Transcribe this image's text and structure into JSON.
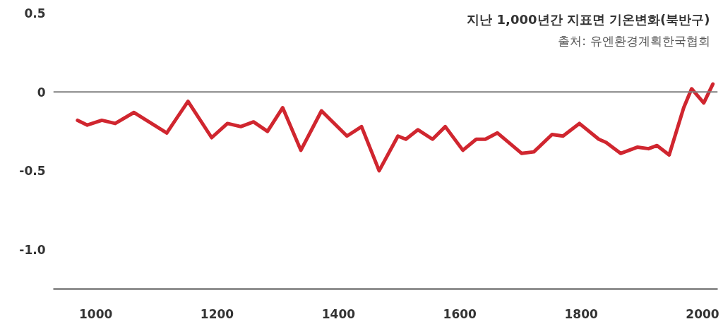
{
  "chart_data": {
    "type": "line",
    "title": "지난 1,000년간 지표면 기온변화(북반구)",
    "annotations": [
      "출처: 유엔환경계획한국협회"
    ],
    "x": [
      970,
      986,
      1010,
      1032,
      1063,
      1117,
      1152,
      1191,
      1217,
      1239,
      1260,
      1283,
      1308,
      1338,
      1372,
      1414,
      1438,
      1467,
      1498,
      1511,
      1531,
      1555,
      1576,
      1605,
      1627,
      1642,
      1662,
      1702,
      1722,
      1752,
      1770,
      1797,
      1829,
      1841,
      1865,
      1893,
      1911,
      1925,
      1945,
      1969,
      1982,
      2002,
      2017
    ],
    "series": [
      {
        "color": "#d0262f",
        "values": [
          -0.18,
          -0.21,
          -0.18,
          -0.2,
          -0.13,
          -0.26,
          -0.06,
          -0.29,
          -0.2,
          -0.22,
          -0.19,
          -0.25,
          -0.1,
          -0.37,
          -0.12,
          -0.28,
          -0.22,
          -0.5,
          -0.28,
          -0.3,
          -0.24,
          -0.3,
          -0.22,
          -0.37,
          -0.3,
          -0.3,
          -0.26,
          -0.39,
          -0.38,
          -0.27,
          -0.28,
          -0.2,
          -0.3,
          -0.32,
          -0.39,
          -0.35,
          -0.36,
          -0.34,
          -0.4,
          -0.1,
          0.02,
          -0.07,
          0.05
        ]
      }
    ],
    "xlim": [
      930,
      2025
    ],
    "ylim": [
      -1.25,
      0.5
    ],
    "xticks": [
      1000,
      1200,
      1400,
      1600,
      1800,
      2000
    ],
    "yticks": [
      0.5,
      0,
      -0.5,
      {
        "value": -1,
        "label": "-1.0"
      }
    ],
    "ref_lines": [
      {
        "axis": "y",
        "value": 0,
        "label": null,
        "color": "#808080"
      }
    ],
    "grid": false,
    "marker": "none",
    "line_style": "solid"
  }
}
